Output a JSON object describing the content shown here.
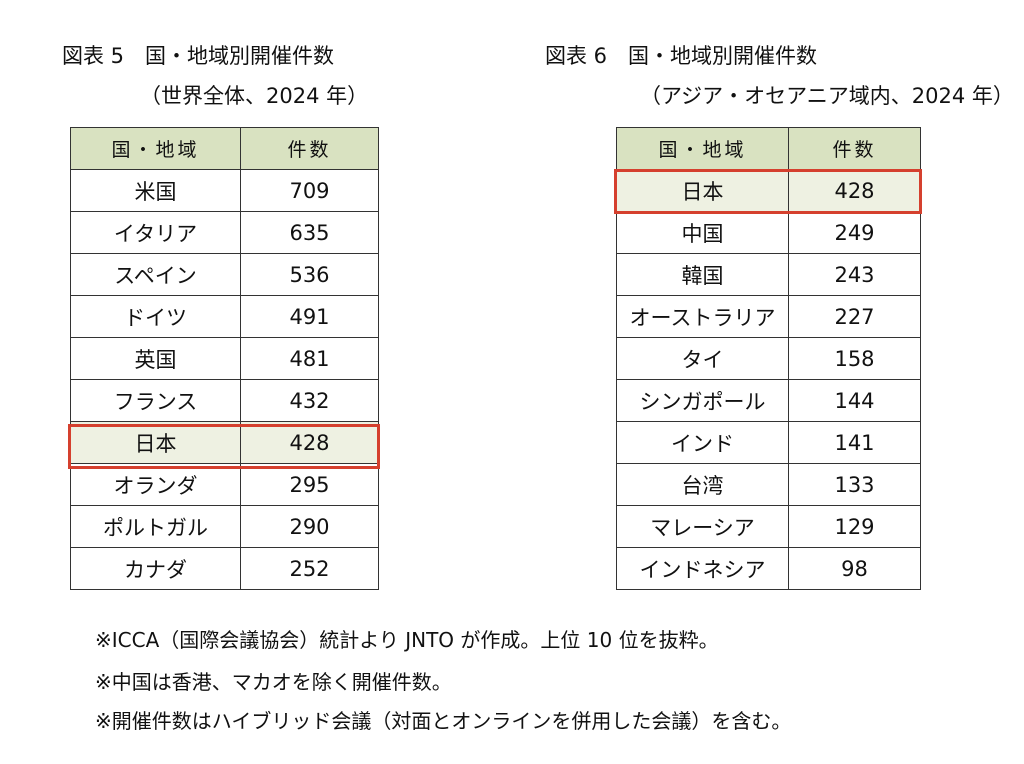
{
  "figure5": {
    "title": "図表 5　国・地域別開催件数",
    "subtitle": "（世界全体、2024 年）",
    "table": {
      "header": [
        "国・地域",
        "件数"
      ],
      "rows": [
        [
          "米国",
          709
        ],
        [
          "イタリア",
          635
        ],
        [
          "スペイン",
          536
        ],
        [
          "ドイツ",
          491
        ],
        [
          "英国",
          481
        ],
        [
          "フランス",
          432
        ],
        [
          "日本",
          428
        ],
        [
          "オランダ",
          295
        ],
        [
          "ポルトガル",
          290
        ],
        [
          "カナダ",
          252
        ]
      ]
    },
    "highlight_row": 6
  },
  "figure6": {
    "title": "図表 6　国・地域別開催件数",
    "subtitle": "（アジア・オセアニア域内、2024 年）",
    "table": {
      "header": [
        "国・地域",
        "件数"
      ],
      "rows": [
        [
          "日本",
          428
        ],
        [
          "中国",
          249
        ],
        [
          "韓国",
          243
        ],
        [
          "オーストラリア",
          227
        ],
        [
          "タイ",
          158
        ],
        [
          "シンガポール",
          144
        ],
        [
          "インド",
          141
        ],
        [
          "台湾",
          133
        ],
        [
          "マレーシア",
          129
        ],
        [
          "インドネシア",
          98
        ]
      ]
    },
    "highlight_row": 0
  },
  "notes": [
    "※ICCA（国際会議協会）統計より JNTO が作成。上位 10 位を抜粋。",
    "※中国は香港、マカオを除く開催件数。",
    "※開催件数はハイブリッド会議（対面とオンラインを併用した会議）を含む。"
  ]
}
